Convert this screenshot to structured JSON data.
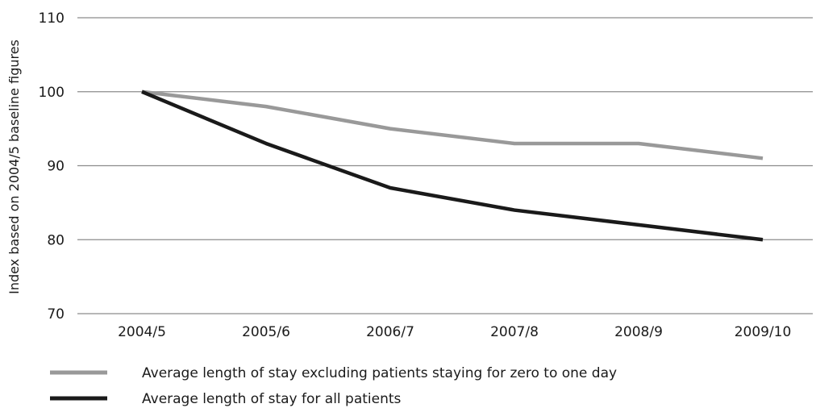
{
  "chart_data": {
    "type": "line",
    "title": "",
    "xlabel": "",
    "ylabel": "Index based on 2004/5 baseline figures",
    "categories": [
      "2004/5",
      "2005/6",
      "2006/7",
      "2007/8",
      "2008/9",
      "2009/10"
    ],
    "ylim": [
      70,
      110
    ],
    "yticks": [
      70,
      80,
      90,
      100,
      110
    ],
    "grid": true,
    "legend_position": "bottom",
    "series": [
      {
        "name": "Average length of stay excluding patients staying for zero to one day",
        "values": [
          100,
          98,
          95,
          93,
          93,
          91
        ],
        "color": "#999999"
      },
      {
        "name": "Average length of stay for all patients",
        "values": [
          100,
          93,
          87,
          84,
          82,
          80
        ],
        "color": "#1a1a1a"
      }
    ]
  }
}
